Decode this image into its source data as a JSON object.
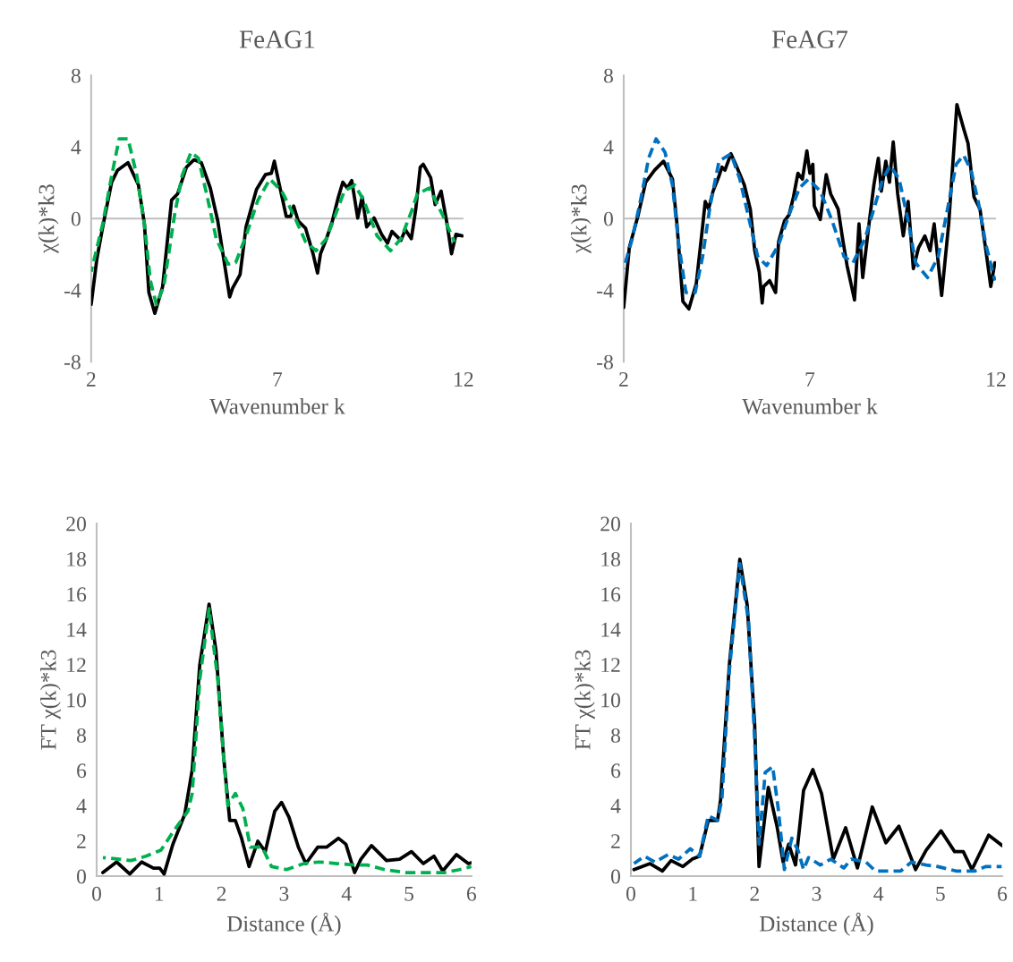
{
  "chart_data": [
    {
      "type": "line",
      "title": "FeAG1",
      "xlabel": "Wavenumber k",
      "ylabel": "χ(k)*k3",
      "xlim": [
        2,
        12
      ],
      "xticks": [
        2,
        7,
        12
      ],
      "ylim": [
        -8,
        8
      ],
      "yticks": [
        -8,
        -4,
        0,
        4,
        8
      ],
      "grid": false,
      "ref_lines": [
        {
          "axis": "y",
          "value": 0,
          "color": "#bfbfbf"
        }
      ],
      "series": [
        {
          "color": "#000000",
          "line_style": "solid",
          "x": [
            2.0,
            2.15,
            2.31,
            2.55,
            2.71,
            2.99,
            3.27,
            3.43,
            3.55,
            3.71,
            3.92,
            4.16,
            4.32,
            4.56,
            4.76,
            4.96,
            5.2,
            5.4,
            5.72,
            5.8,
            6.0,
            6.16,
            6.44,
            6.68,
            6.84,
            6.92,
            7.04,
            7.24,
            7.36,
            7.44,
            7.56,
            7.76,
            7.96,
            8.08,
            8.16,
            8.32,
            8.48,
            8.64,
            8.76,
            8.88,
            9.0,
            9.16,
            9.28,
            9.4,
            9.6,
            9.8,
            9.96,
            10.08,
            10.32,
            10.44,
            10.6,
            10.72,
            10.84,
            10.92,
            11.12,
            11.24,
            11.4,
            11.56,
            11.68,
            11.8,
            11.97
          ],
          "values": [
            -4.8,
            -2.3,
            -0.47,
            2.03,
            2.7,
            3.12,
            1.87,
            -0.3,
            -4.13,
            -5.3,
            -3.8,
            1.03,
            1.37,
            2.87,
            3.28,
            3.12,
            1.7,
            -0.13,
            -4.38,
            -3.88,
            -3.13,
            -0.47,
            1.62,
            2.45,
            2.53,
            3.2,
            2.03,
            0.12,
            0.12,
            0.7,
            -0.13,
            -0.55,
            -1.97,
            -3.05,
            -1.97,
            -1.13,
            -0.13,
            1.2,
            2.03,
            1.7,
            2.12,
            0.03,
            1.2,
            -0.47,
            0.03,
            -0.88,
            -1.38,
            -0.72,
            -1.22,
            -0.63,
            -1.13,
            0.53,
            2.87,
            3.03,
            2.28,
            0.78,
            1.53,
            -0.3,
            -1.97,
            -0.88,
            -0.97
          ]
        },
        {
          "color": "#00b050",
          "line_style": "dashed",
          "x": [
            2.0,
            2.31,
            2.55,
            2.75,
            2.99,
            3.23,
            3.43,
            3.59,
            3.75,
            3.95,
            4.24,
            4.44,
            4.68,
            4.88,
            5.12,
            5.36,
            5.68,
            5.88,
            6.16,
            6.48,
            6.8,
            7.12,
            7.44,
            7.76,
            8.04,
            8.32,
            8.56,
            8.8,
            9.08,
            9.32,
            9.68,
            10.04,
            10.32,
            10.6,
            10.76,
            11.08,
            11.44,
            11.76
          ],
          "values": [
            -2.97,
            -0.3,
            2.37,
            4.45,
            4.45,
            2.37,
            -0.3,
            -3.47,
            -4.8,
            -3.8,
            0.2,
            2.37,
            3.7,
            3.37,
            1.2,
            -1.13,
            -2.55,
            -2.47,
            -0.97,
            1.03,
            2.2,
            1.53,
            0.2,
            -1.3,
            -1.8,
            -1.13,
            0.2,
            1.53,
            1.87,
            1.03,
            -0.97,
            -1.8,
            -1.13,
            0.37,
            1.37,
            1.7,
            0.2,
            -1.3
          ]
        }
      ]
    },
    {
      "type": "line",
      "title": "FeAG7",
      "xlabel": "Wavenumber k",
      "ylabel": "χ(k)*k3",
      "xlim": [
        2,
        12
      ],
      "xticks": [
        2,
        7,
        12
      ],
      "ylim": [
        -8,
        8
      ],
      "yticks": [
        -8,
        -4,
        0,
        4,
        8
      ],
      "grid": false,
      "ref_lines": [
        {
          "axis": "y",
          "value": 0,
          "color": "#bfbfbf"
        }
      ],
      "series": [
        {
          "color": "#000000",
          "line_style": "solid",
          "x": [
            2.0,
            2.15,
            2.39,
            2.59,
            2.83,
            3.07,
            3.31,
            3.43,
            3.59,
            3.75,
            3.95,
            4.11,
            4.19,
            4.28,
            4.4,
            4.56,
            4.64,
            4.72,
            4.88,
            5.04,
            5.24,
            5.4,
            5.52,
            5.64,
            5.72,
            5.76,
            5.92,
            6.08,
            6.16,
            6.32,
            6.44,
            6.56,
            6.68,
            6.8,
            6.92,
            7.0,
            7.08,
            7.12,
            7.28,
            7.44,
            7.56,
            7.76,
            7.88,
            8.0,
            8.2,
            8.32,
            8.42,
            8.56,
            8.72,
            8.84,
            8.92,
            9.04,
            9.14,
            9.24,
            9.36,
            9.51,
            9.64,
            9.78,
            9.92,
            10.09,
            10.23,
            10.34,
            10.54,
            10.73,
            10.95,
            11.13,
            11.25,
            11.41,
            11.57,
            11.73,
            11.86,
            11.97
          ],
          "values": [
            -4.97,
            -1.63,
            0.2,
            2.03,
            2.7,
            3.2,
            2.2,
            -0.3,
            -4.63,
            -5.05,
            -3.63,
            -0.63,
            0.95,
            0.53,
            1.53,
            2.37,
            2.87,
            2.7,
            3.62,
            2.87,
            1.87,
            0.53,
            -1.8,
            -2.97,
            -4.72,
            -3.8,
            -3.47,
            -4.13,
            -1.3,
            -0.13,
            0.2,
            1.2,
            2.53,
            2.2,
            3.78,
            2.53,
            3.03,
            0.7,
            -0.05,
            2.45,
            1.37,
            0.53,
            -1.13,
            -2.63,
            -4.55,
            -0.3,
            -3.3,
            -0.8,
            1.87,
            3.37,
            1.53,
            3.2,
            2.03,
            4.28,
            1.37,
            -0.97,
            0.95,
            -2.8,
            -1.63,
            -0.97,
            -1.8,
            -0.3,
            -4.3,
            -0.3,
            6.37,
            5.03,
            4.2,
            1.2,
            0.53,
            -1.8,
            -3.8,
            -2.47
          ]
        },
        {
          "color": "#0070c0",
          "line_style": "dashed",
          "x": [
            2.0,
            2.23,
            2.47,
            2.67,
            2.87,
            3.11,
            3.31,
            3.47,
            3.67,
            3.92,
            4.12,
            4.32,
            4.56,
            4.88,
            5.12,
            5.36,
            5.6,
            5.84,
            6.16,
            6.44,
            6.72,
            6.96,
            7.28,
            7.6,
            7.92,
            8.16,
            8.48,
            8.72,
            8.96,
            9.16,
            9.4,
            9.64,
            9.84,
            10.16,
            10.45,
            10.73,
            10.93,
            11.13,
            11.33,
            11.53,
            11.73,
            11.97
          ],
          "values": [
            -2.8,
            -1.13,
            1.2,
            3.37,
            4.45,
            3.7,
            1.87,
            -1.3,
            -4.13,
            -4.13,
            -2.13,
            0.7,
            3.2,
            3.62,
            2.2,
            0.03,
            -2.13,
            -2.63,
            -1.47,
            0.2,
            1.7,
            2.2,
            1.53,
            -0.13,
            -2.13,
            -2.47,
            -1.13,
            0.53,
            2.2,
            2.95,
            2.2,
            -0.13,
            -2.47,
            -3.3,
            -2.13,
            0.87,
            3.03,
            3.53,
            2.7,
            0.87,
            -1.47,
            -3.47
          ]
        }
      ]
    },
    {
      "type": "line",
      "xlabel": "Distance (Å)",
      "ylabel": "FT χ(k)*k3",
      "xlim": [
        0,
        6
      ],
      "xticks": [
        0,
        1,
        2,
        3,
        4,
        5,
        6
      ],
      "ylim": [
        0,
        20
      ],
      "yticks": [
        0,
        2,
        4,
        6,
        8,
        10,
        12,
        14,
        16,
        18,
        20
      ],
      "grid": false,
      "series": [
        {
          "color": "#000000",
          "line_style": "solid",
          "x": [
            0.1,
            0.32,
            0.53,
            0.72,
            0.91,
            1.01,
            1.08,
            1.22,
            1.41,
            1.53,
            1.65,
            1.8,
            1.91,
            2.03,
            2.13,
            2.22,
            2.32,
            2.44,
            2.58,
            2.7,
            2.85,
            2.96,
            3.08,
            3.23,
            3.35,
            3.54,
            3.68,
            3.87,
            3.99,
            4.13,
            4.23,
            4.4,
            4.64,
            4.85,
            5.04,
            5.23,
            5.4,
            5.54,
            5.76,
            5.95,
            6.0
          ],
          "values": [
            0.2,
            0.8,
            0.12,
            0.8,
            0.45,
            0.45,
            0.12,
            1.8,
            3.5,
            6.04,
            11.96,
            15.43,
            12.8,
            6.88,
            3.16,
            3.16,
            2.15,
            0.54,
            1.98,
            1.39,
            3.67,
            4.18,
            3.33,
            1.64,
            0.71,
            1.64,
            1.64,
            2.15,
            1.81,
            0.2,
            0.96,
            1.73,
            0.88,
            0.96,
            1.39,
            0.71,
            1.13,
            0.29,
            1.22,
            0.71,
            0.76
          ]
        },
        {
          "color": "#00b050",
          "line_style": "dashed",
          "x": [
            0.1,
            0.36,
            0.55,
            0.79,
            1.03,
            1.22,
            1.46,
            1.53,
            1.65,
            1.8,
            1.94,
            2.03,
            2.1,
            2.22,
            2.34,
            2.46,
            2.65,
            2.8,
            3.04,
            3.32,
            3.56,
            3.85,
            4.13,
            4.33,
            4.61,
            4.95,
            5.28,
            5.57,
            5.81,
            6.0
          ],
          "values": [
            1.05,
            0.96,
            0.88,
            1.13,
            1.47,
            2.49,
            3.67,
            4.69,
            11.12,
            15.17,
            11.12,
            6.88,
            4.0,
            4.69,
            3.84,
            1.64,
            1.64,
            0.54,
            0.37,
            0.71,
            0.8,
            0.71,
            0.63,
            0.63,
            0.37,
            0.2,
            0.2,
            0.2,
            0.37,
            0.54
          ]
        }
      ]
    },
    {
      "type": "line",
      "xlabel": "Distance (Å)",
      "ylabel": "FT χ(k)*k3",
      "xlim": [
        0,
        6
      ],
      "xticks": [
        0,
        1,
        2,
        3,
        4,
        5,
        6
      ],
      "ylim": [
        0,
        20
      ],
      "yticks": [
        0,
        2,
        4,
        6,
        8,
        10,
        12,
        14,
        16,
        18,
        20
      ],
      "grid": false,
      "series": [
        {
          "color": "#000000",
          "line_style": "solid",
          "x": [
            0.05,
            0.31,
            0.51,
            0.65,
            0.84,
            0.99,
            1.11,
            1.25,
            1.4,
            1.45,
            1.59,
            1.76,
            1.88,
            2.0,
            2.07,
            2.22,
            2.36,
            2.46,
            2.55,
            2.66,
            2.79,
            2.94,
            3.08,
            3.27,
            3.47,
            3.66,
            3.9,
            4.12,
            4.33,
            4.6,
            4.77,
            5.01,
            5.23,
            5.37,
            5.51,
            5.78,
            6.0
          ],
          "values": [
            0.37,
            0.71,
            0.29,
            0.88,
            0.54,
            0.96,
            1.13,
            3.16,
            3.16,
            4.35,
            11.96,
            17.97,
            15.35,
            8.58,
            0.54,
            5.03,
            2.83,
            0.79,
            1.81,
            0.63,
            4.86,
            6.04,
            4.69,
            0.96,
            2.74,
            0.46,
            3.92,
            1.89,
            2.83,
            0.37,
            1.47,
            2.57,
            1.39,
            1.39,
            0.37,
            2.32,
            1.73
          ]
        },
        {
          "color": "#0070c0",
          "line_style": "dashed",
          "x": [
            0.05,
            0.22,
            0.39,
            0.6,
            0.77,
            0.96,
            1.11,
            1.25,
            1.4,
            1.47,
            1.59,
            1.76,
            1.9,
            2.0,
            2.07,
            2.17,
            2.29,
            2.38,
            2.48,
            2.6,
            2.7,
            2.79,
            2.87,
            3.06,
            3.23,
            3.44,
            3.56,
            3.8,
            3.95,
            4.36,
            4.53,
            4.77,
            4.96,
            5.25,
            5.56,
            5.73,
            5.99
          ],
          "values": [
            0.71,
            1.13,
            0.79,
            1.22,
            0.96,
            1.55,
            1.13,
            3.42,
            3.16,
            4.35,
            11.63,
            17.72,
            14.5,
            7.74,
            1.81,
            5.88,
            6.21,
            3.84,
            0.37,
            2.15,
            1.47,
            0.37,
            1.05,
            0.63,
            0.96,
            0.46,
            0.96,
            0.79,
            0.29,
            0.29,
            0.79,
            0.63,
            0.54,
            0.29,
            0.29,
            0.54,
            0.54
          ]
        }
      ]
    }
  ]
}
